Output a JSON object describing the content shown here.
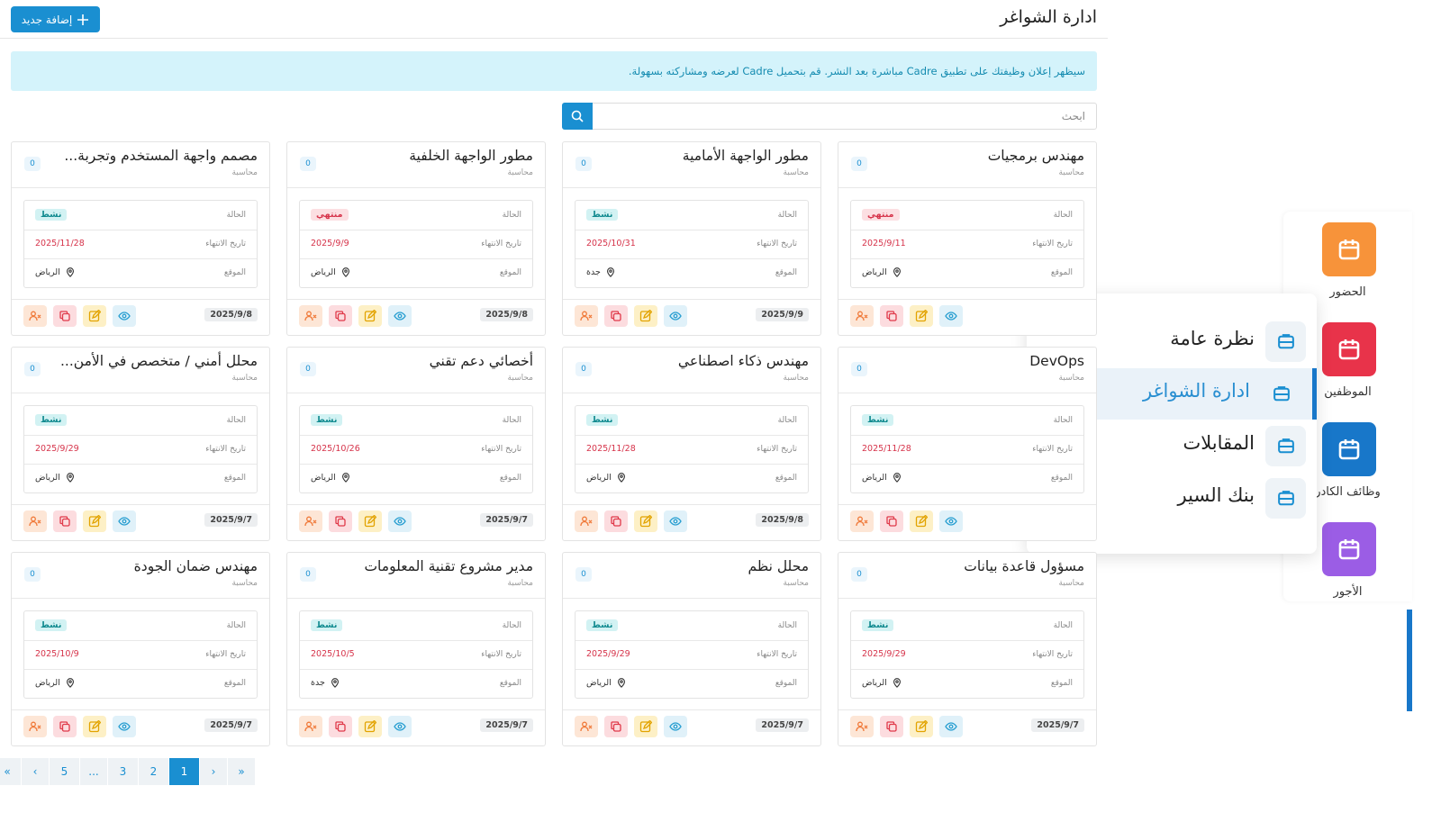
{
  "header": {
    "title": "ادارة الشواغر",
    "add_button": "إضافة جديد"
  },
  "banner": "سيظهر إعلان وظيفتك على تطبيق Cadre مباشرة بعد النشر. قم بتحميل Cadre لعرضه ومشاركته بسهولة.",
  "search": {
    "placeholder": "ابحث"
  },
  "labels": {
    "status": "الحالة",
    "end_date": "تاريخ الانتهاء",
    "location": "الموقع"
  },
  "status_styles": [
    {
      "label": "نشط",
      "bg": "#d2f2f3",
      "fg": "#108a8f"
    },
    {
      "label": "منتهي",
      "bg": "#fcdfe2",
      "fg": "#d6334a"
    }
  ],
  "cards": [
    {
      "title": "مهندس برمجيات",
      "department": "محاسبة",
      "count": 0,
      "status": "منتهي",
      "end_date": "2025/9/11",
      "location": "الرياض"
    },
    {
      "title": "مطور الواجهة الأمامية",
      "department": "محاسبة",
      "count": 0,
      "status": "نشط",
      "end_date": "2025/10/31",
      "location": "جدة",
      "created": "2025/9/9"
    },
    {
      "title": "مطور الواجهة الخلفية",
      "department": "محاسبة",
      "count": 0,
      "status": "منتهي",
      "end_date": "2025/9/9",
      "location": "الرياض",
      "created": "2025/9/8"
    },
    {
      "title": "مصمم واجهة المستخدم وتجربة...",
      "department": "محاسبة",
      "count": 0,
      "status": "نشط",
      "end_date": "2025/11/28",
      "location": "الرياض",
      "created": "2025/9/8"
    },
    {
      "title": "DevOps",
      "department": "محاسبة",
      "count": 0,
      "status": "نشط",
      "end_date": "2025/11/28",
      "location": "الرياض"
    },
    {
      "title": "مهندس ذكاء اصطناعي",
      "department": "محاسبة",
      "count": 0,
      "status": "نشط",
      "end_date": "2025/11/28",
      "location": "الرياض",
      "created": "2025/9/8"
    },
    {
      "title": "أخصائي دعم تقني",
      "department": "محاسبة",
      "count": 0,
      "status": "نشط",
      "end_date": "2025/10/26",
      "location": "الرياض",
      "created": "2025/9/7"
    },
    {
      "title": "محلل أمني / متخصص في الأمن...",
      "department": "محاسبة",
      "count": 0,
      "status": "نشط",
      "end_date": "2025/9/29",
      "location": "الرياض",
      "created": "2025/9/7"
    },
    {
      "title": "مسؤول قاعدة بيانات",
      "department": "محاسبة",
      "count": 0,
      "status": "نشط",
      "end_date": "2025/9/29",
      "location": "الرياض",
      "created": "2025/9/7"
    },
    {
      "title": "محلل نظم",
      "department": "محاسبة",
      "count": 0,
      "status": "نشط",
      "end_date": "2025/9/29",
      "location": "الرياض",
      "created": "2025/9/7"
    },
    {
      "title": "مدير مشروع تقنية المعلومات",
      "department": "محاسبة",
      "count": 0,
      "status": "نشط",
      "end_date": "2025/10/5",
      "location": "جدة",
      "created": "2025/9/7"
    },
    {
      "title": "مهندس ضمان الجودة",
      "department": "محاسبة",
      "count": 0,
      "status": "نشط",
      "end_date": "2025/10/9",
      "location": "الرياض",
      "created": "2025/9/7"
    }
  ],
  "pagination": {
    "items": [
      "»",
      "›",
      1,
      2,
      3,
      "...",
      5,
      "‹",
      "«"
    ],
    "current": 1
  },
  "sidebar": [
    {
      "label": "الحضور",
      "color": "#f7933a"
    },
    {
      "label": "الموظفين",
      "color": "#e8334a"
    },
    {
      "label": "وظائف الكادر",
      "color": "#1877c9",
      "active": true
    },
    {
      "label": "الأجور",
      "color": "#9b5de5"
    }
  ],
  "menu": [
    {
      "label": "نظرة عامة"
    },
    {
      "label": "ادارة الشواغر",
      "active": true
    },
    {
      "label": "المقابلات"
    },
    {
      "label": "بنك السير"
    }
  ]
}
